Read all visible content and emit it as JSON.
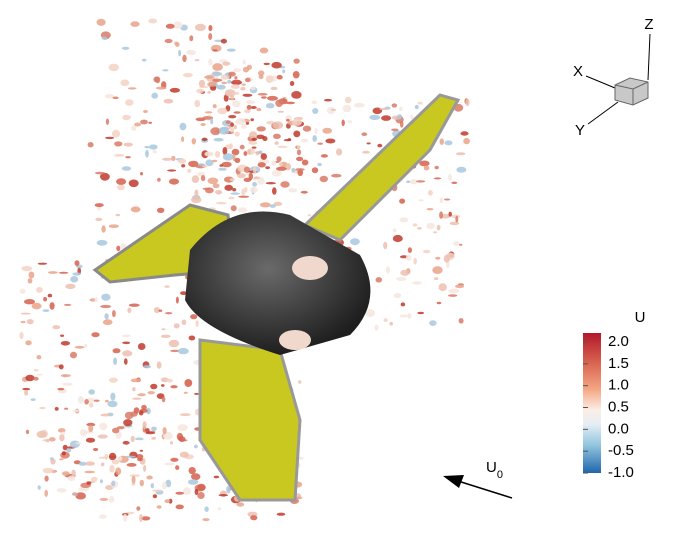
{
  "colorbar": {
    "title": "U",
    "ticks": [
      "2.0",
      "1.5",
      "1.0",
      "0.5",
      "0.0",
      "-0.5",
      "-1.0"
    ]
  },
  "axes": {
    "x": "X",
    "y": "Y",
    "z": "Z"
  },
  "flow": {
    "symbol": "U",
    "subscript": "0"
  }
}
